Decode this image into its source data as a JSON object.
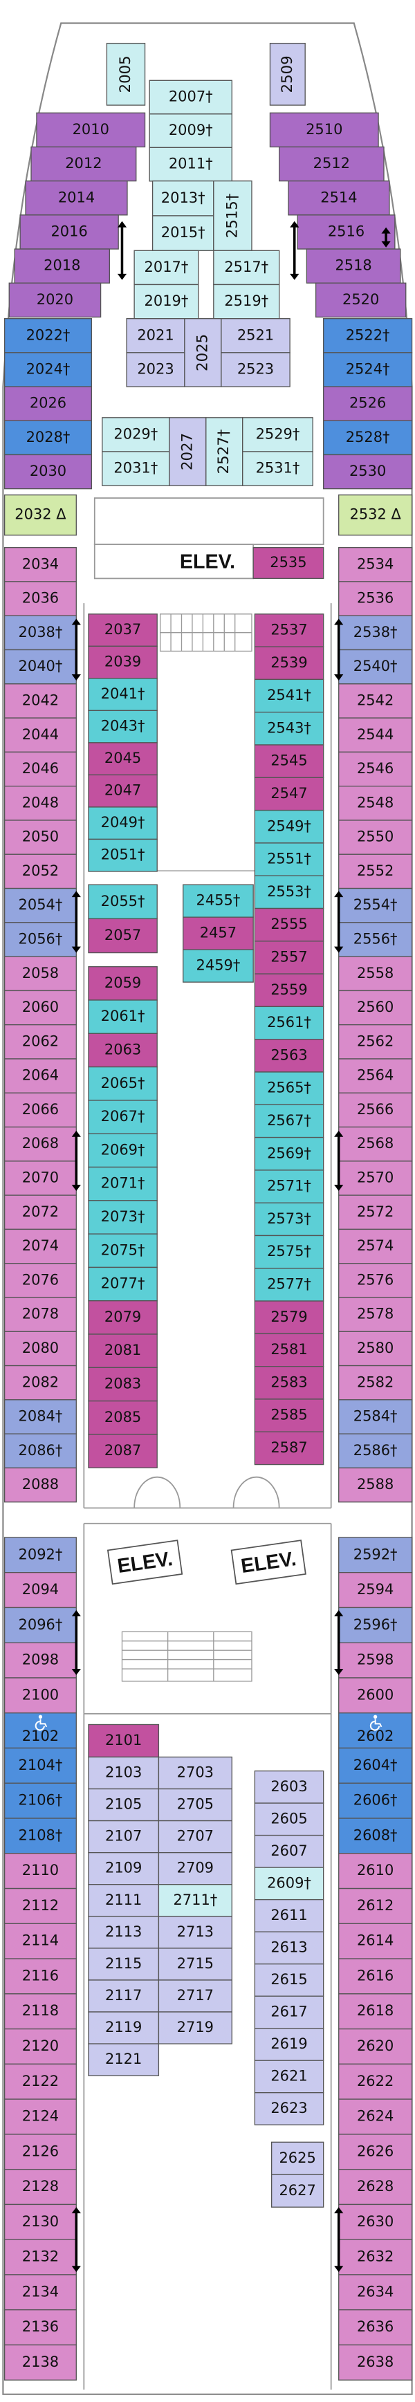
{
  "columns": [
    [
      {
        "color": "#a96bc5",
        "labels": [
          "2010",
          "2012",
          "2014",
          "2016",
          "2018",
          "2020"
        ]
      }
    ],
    [
      {
        "color": "#4e8fdd",
        "labels": [
          "2022†",
          "2024†"
        ]
      },
      {
        "color": "#a96bc5",
        "labels": [
          "2026"
        ]
      },
      {
        "color": "#4e8fdd",
        "labels": [
          "2028†"
        ]
      },
      {
        "color": "#a96bc5",
        "labels": [
          "2030"
        ]
      }
    ],
    [
      {
        "color": "#a96bc5",
        "labels": [
          "2510",
          "2512",
          "2514",
          "2516",
          "2518",
          "2520"
        ]
      }
    ],
    [
      {
        "color": "#4e8fdd",
        "labels": [
          "2522†",
          "2524†"
        ]
      },
      {
        "color": "#a96bc5",
        "labels": [
          "2526"
        ]
      },
      {
        "color": "#4e8fdd",
        "labels": [
          "2528†"
        ]
      },
      {
        "color": "#a96bc5",
        "labels": [
          "2530"
        ]
      }
    ],
    [
      {
        "color": "#cbeff1",
        "labels": [
          "2005"
        ]
      }
    ],
    [
      {
        "color": "#c9caee",
        "labels": [
          "2509"
        ]
      }
    ],
    [
      {
        "color": "#cbeff1",
        "labels": [
          "2007†",
          "2009†",
          "2011†"
        ]
      }
    ],
    [
      {
        "color": "#cbeff1",
        "labels": [
          "2013†",
          "2015†"
        ]
      }
    ],
    [
      {
        "color": "#cbeff1",
        "labels": [
          "2515†"
        ]
      }
    ],
    [
      {
        "color": "#cbeff1",
        "labels": [
          "2017†",
          "2019†"
        ]
      }
    ],
    [
      {
        "color": "#cbeff1",
        "labels": [
          "2517†",
          "2519†"
        ]
      }
    ],
    [
      {
        "color": "#c9caee",
        "labels": [
          "2021",
          "2023"
        ]
      }
    ],
    [
      {
        "color": "#c9caee",
        "labels": [
          "2025"
        ]
      }
    ],
    [
      {
        "color": "#c9caee",
        "labels": [
          "2521",
          "2523"
        ]
      }
    ],
    [
      {
        "color": "#cbeff1",
        "labels": [
          "2029†",
          "2031†"
        ]
      }
    ],
    [
      {
        "color": "#c9caee",
        "labels": [
          "2027"
        ]
      }
    ],
    [
      {
        "color": "#cbeff1",
        "labels": [
          "2527†"
        ]
      }
    ],
    [
      {
        "color": "#cbeff1",
        "labels": [
          "2529†",
          "2531†"
        ]
      }
    ],
    [
      {
        "color": "#d2eaa9",
        "labels": [
          "2032 Δ"
        ]
      }
    ],
    [
      {
        "color": "#d2eaa9",
        "labels": [
          "2532 Δ"
        ]
      }
    ],
    [
      {
        "color": "#c2519f",
        "labels": [
          "2535"
        ]
      }
    ],
    [
      {
        "color": "#d98bca",
        "labels": [
          "2034",
          "2036"
        ]
      },
      {
        "color": "#93a5de",
        "labels": [
          "2038†",
          "2040†"
        ]
      },
      {
        "color": "#d98bca",
        "labels": [
          "2042",
          "2044",
          "2046",
          "2048",
          "2050",
          "2052"
        ]
      },
      {
        "color": "#93a5de",
        "labels": [
          "2054†",
          "2056†"
        ]
      },
      {
        "color": "#d98bca",
        "labels": [
          "2058",
          "2060",
          "2062",
          "2064",
          "2066",
          "2068",
          "2070",
          "2072",
          "2074",
          "2076",
          "2078",
          "2080",
          "2082"
        ]
      },
      {
        "color": "#93a5de",
        "labels": [
          "2084†",
          "2086†"
        ]
      },
      {
        "color": "#d98bca",
        "labels": [
          "2088"
        ]
      }
    ],
    [
      {
        "color": "#d98bca",
        "labels": [
          "2534",
          "2536"
        ]
      },
      {
        "color": "#93a5de",
        "labels": [
          "2538†",
          "2540†"
        ]
      },
      {
        "color": "#d98bca",
        "labels": [
          "2542",
          "2544",
          "2546",
          "2548",
          "2550",
          "2552"
        ]
      },
      {
        "color": "#93a5de",
        "labels": [
          "2554†",
          "2556†"
        ]
      },
      {
        "color": "#d98bca",
        "labels": [
          "2558",
          "2560",
          "2562",
          "2564",
          "2566",
          "2568",
          "2570",
          "2572",
          "2574",
          "2576",
          "2578",
          "2580",
          "2582"
        ]
      },
      {
        "color": "#93a5de",
        "labels": [
          "2584†",
          "2586†"
        ]
      },
      {
        "color": "#d98bca",
        "labels": [
          "2588"
        ]
      }
    ],
    [
      {
        "color": "#c2519f",
        "labels": [
          "2037",
          "2039"
        ]
      },
      {
        "color": "#5ccfd6",
        "labels": [
          "2041†",
          "2043†"
        ]
      },
      {
        "color": "#c2519f",
        "labels": [
          "2045",
          "2047"
        ]
      },
      {
        "color": "#5ccfd6",
        "labels": [
          "2049†",
          "2051†"
        ]
      }
    ],
    [
      {
        "color": "#5ccfd6",
        "labels": [
          "2055†"
        ]
      },
      {
        "color": "#c2519f",
        "labels": [
          "2057"
        ]
      }
    ],
    [
      {
        "color": "#c2519f",
        "labels": [
          "2059"
        ]
      },
      {
        "color": "#5ccfd6",
        "labels": [
          "2061†"
        ]
      },
      {
        "color": "#c2519f",
        "labels": [
          "2063"
        ]
      },
      {
        "color": "#5ccfd6",
        "labels": [
          "2065†",
          "2067†",
          "2069†",
          "2071†",
          "2073†",
          "2075†",
          "2077†"
        ]
      },
      {
        "color": "#c2519f",
        "labels": [
          "2079",
          "2081",
          "2083",
          "2085",
          "2087"
        ]
      }
    ],
    [
      {
        "color": "#c2519f",
        "labels": [
          "2537",
          "2539"
        ]
      },
      {
        "color": "#5ccfd6",
        "labels": [
          "2541†",
          "2543†"
        ]
      },
      {
        "color": "#c2519f",
        "labels": [
          "2545",
          "2547"
        ]
      },
      {
        "color": "#5ccfd6",
        "labels": [
          "2549†",
          "2551†",
          "2553†"
        ]
      },
      {
        "color": "#c2519f",
        "labels": [
          "2555",
          "2557",
          "2559"
        ]
      },
      {
        "color": "#5ccfd6",
        "labels": [
          "2561†"
        ]
      },
      {
        "color": "#c2519f",
        "labels": [
          "2563"
        ]
      },
      {
        "color": "#5ccfd6",
        "labels": [
          "2565†",
          "2567†",
          "2569†",
          "2571†",
          "2573†",
          "2575†",
          "2577†"
        ]
      },
      {
        "color": "#c2519f",
        "labels": [
          "2579",
          "2581",
          "2583",
          "2585",
          "2587"
        ]
      }
    ],
    [
      {
        "color": "#5ccfd6",
        "labels": [
          "2455†"
        ]
      },
      {
        "color": "#c2519f",
        "labels": [
          "2457"
        ]
      },
      {
        "color": "#5ccfd6",
        "labels": [
          "2459†"
        ]
      }
    ],
    [
      {
        "color": "#93a5de",
        "labels": [
          "2092†"
        ]
      },
      {
        "color": "#d98bca",
        "labels": [
          "2094"
        ]
      },
      {
        "color": "#93a5de",
        "labels": [
          "2096†"
        ]
      },
      {
        "color": "#d98bca",
        "labels": [
          "2098",
          "2100"
        ]
      },
      {
        "color": "#4e8fdd",
        "labels": [
          "2102",
          "2104†",
          "2106†",
          "2108†"
        ]
      },
      {
        "color": "#d98bca",
        "labels": [
          "2110",
          "2112",
          "2114",
          "2116",
          "2118",
          "2120",
          "2122",
          "2124",
          "2126",
          "2128",
          "2130",
          "2132",
          "2134",
          "2136",
          "2138"
        ]
      }
    ],
    [
      {
        "color": "#93a5de",
        "labels": [
          "2592†"
        ]
      },
      {
        "color": "#d98bca",
        "labels": [
          "2594"
        ]
      },
      {
        "color": "#93a5de",
        "labels": [
          "2596†"
        ]
      },
      {
        "color": "#d98bca",
        "labels": [
          "2598",
          "2600"
        ]
      },
      {
        "color": "#4e8fdd",
        "labels": [
          "2602",
          "2604†",
          "2606†",
          "2608†"
        ]
      },
      {
        "color": "#d98bca",
        "labels": [
          "2610",
          "2612",
          "2614",
          "2616",
          "2618",
          "2620",
          "2622",
          "2624",
          "2626",
          "2628",
          "2630",
          "2632",
          "2634",
          "2636",
          "2638"
        ]
      }
    ],
    [
      {
        "color": "#c2519f",
        "labels": [
          "2101"
        ]
      }
    ],
    [
      {
        "color": "#c9caee",
        "labels": [
          "2103",
          "2105",
          "2107",
          "2109",
          "2111",
          "2113",
          "2115",
          "2117",
          "2119",
          "2121"
        ]
      }
    ],
    [
      {
        "color": "#c9caee",
        "labels": [
          "2703",
          "2705",
          "2707",
          "2709"
        ]
      },
      {
        "color": "#cbeff1",
        "labels": [
          "2711†"
        ]
      },
      {
        "color": "#c9caee",
        "labels": [
          "2713",
          "2715",
          "2717",
          "2719"
        ]
      }
    ],
    [
      {
        "color": "#c9caee",
        "labels": [
          "2603",
          "2605",
          "2607"
        ]
      },
      {
        "color": "#cbeff1",
        "labels": [
          "2609†"
        ]
      },
      {
        "color": "#c9caee",
        "labels": [
          "2611",
          "2613",
          "2615",
          "2617",
          "2619",
          "2621",
          "2623"
        ]
      }
    ],
    [
      {
        "color": "#c9caee",
        "labels": [
          "2625",
          "2627"
        ]
      }
    ]
  ],
  "elevators": [
    "ELEV.",
    "ELEV.",
    "ELEV."
  ]
}
